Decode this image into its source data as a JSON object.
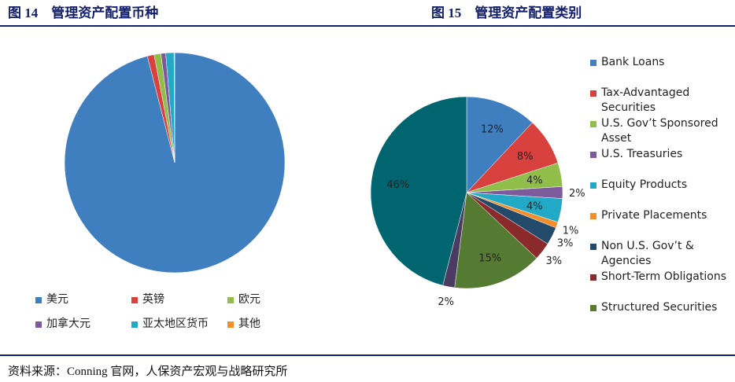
{
  "chart_data": [
    {
      "type": "pie",
      "title": "图 14　管理资产配置币种",
      "categories": [
        "美元",
        "英镑",
        "欧元",
        "加拿大元",
        "亚太地区货币",
        "其他"
      ],
      "values": [
        96,
        1,
        1,
        0.7,
        1.2,
        0.1
      ],
      "colors": [
        "#3f7fbf",
        "#d9413e",
        "#8fbf4a",
        "#7d5a9b",
        "#21a9c6",
        "#f28e2b"
      ]
    },
    {
      "type": "pie",
      "title": "图 15　管理资产配置类别",
      "categories": [
        "Bank Loans",
        "Tax-Advantaged Securities",
        "U.S. Gov’t Sponsored Asset",
        "U.S. Treasuries",
        "Equity Products",
        "Private Placements",
        "Non U.S. Gov’t & Agencies",
        "Short-Term Obligations",
        "Structured Securities",
        null,
        null
      ],
      "values": [
        12,
        8,
        4,
        2,
        4,
        1,
        3,
        3,
        15,
        2,
        46
      ],
      "value_labels": [
        "12%",
        "8%",
        "4%",
        "2%",
        "4%",
        "1%",
        "3%",
        "3%",
        "15%",
        "2%",
        "46%"
      ],
      "colors": [
        "#3f7fbf",
        "#d9413e",
        "#8fbf4a",
        "#7d5a9b",
        "#21a9c6",
        "#f28e2b",
        "#234a6b",
        "#8b2a2a",
        "#557a31",
        "#4b3b63",
        "#00656f"
      ]
    }
  ],
  "source": "资料来源：Conning 官网，人保资产宏观与战略研究所"
}
